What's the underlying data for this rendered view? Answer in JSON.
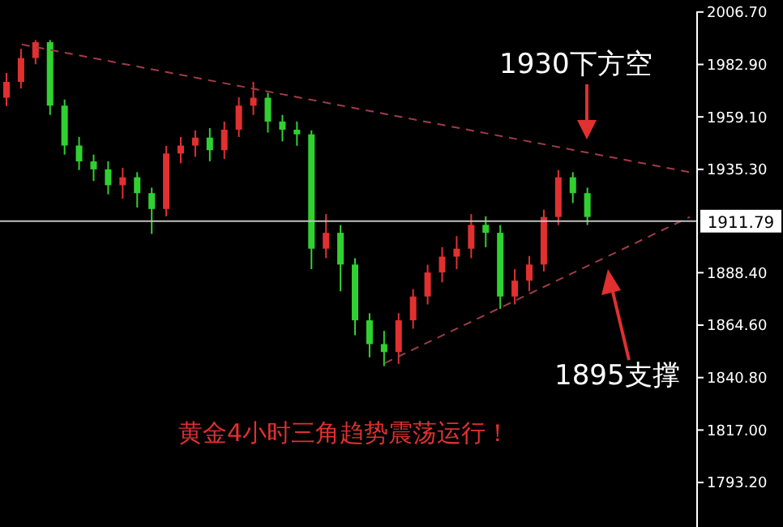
{
  "chart_data": {
    "type": "candlestick",
    "categories": [
      null,
      null,
      null,
      null,
      null,
      null,
      null,
      null,
      null,
      null,
      null,
      null,
      null,
      null,
      null,
      null,
      null,
      null,
      null,
      null,
      null,
      null,
      null,
      null,
      null,
      null,
      null,
      null,
      null,
      null,
      null,
      null,
      null,
      null,
      null,
      null,
      null,
      null,
      null,
      null,
      null,
      null,
      null,
      null,
      null,
      null,
      null,
      null
    ],
    "ohlc": [
      [
        1967.8,
        1979,
        1964,
        1975.0
      ],
      [
        1975.0,
        1990,
        1972,
        1985.8
      ],
      [
        1985.8,
        1994,
        1983,
        1993.0
      ],
      [
        1993.0,
        1994,
        1960,
        1964.2
      ],
      [
        1964.2,
        1967,
        1942,
        1946.1
      ],
      [
        1946.1,
        1950,
        1935,
        1938.9
      ],
      [
        1938.9,
        1942,
        1930,
        1935.3
      ],
      [
        1935.3,
        1939,
        1924,
        1928.1
      ],
      [
        1928.1,
        1936,
        1922,
        1931.7
      ],
      [
        1931.7,
        1934,
        1918,
        1924.5
      ],
      [
        1924.5,
        1927,
        1906,
        1917.3
      ],
      [
        1917.3,
        1946,
        1914,
        1942.5
      ],
      [
        1942.5,
        1950,
        1938,
        1946.1
      ],
      [
        1946.1,
        1953,
        1941,
        1949.7
      ],
      [
        1949.7,
        1954,
        1939,
        1944.0
      ],
      [
        1944.0,
        1957,
        1940,
        1953.3
      ],
      [
        1953.3,
        1968,
        1950,
        1964.2
      ],
      [
        1964.2,
        1975,
        1960,
        1967.8
      ],
      [
        1967.8,
        1970,
        1952,
        1957.0
      ],
      [
        1957.0,
        1960,
        1948,
        1953.3
      ],
      [
        1953.3,
        1957,
        1946,
        1951.2
      ],
      [
        1951.2,
        1953,
        1890,
        1899.3
      ],
      [
        1899.3,
        1915,
        1895,
        1906.5
      ],
      [
        1906.5,
        1910,
        1880,
        1892.1
      ],
      [
        1892.1,
        1895,
        1860,
        1866.8
      ],
      [
        1866.8,
        1870,
        1850,
        1856.0
      ],
      [
        1856.0,
        1862,
        1846,
        1852.4
      ],
      [
        1852.4,
        1870,
        1847,
        1866.8
      ],
      [
        1866.8,
        1881,
        1863,
        1877.6
      ],
      [
        1877.6,
        1892,
        1874,
        1888.5
      ],
      [
        1888.5,
        1900,
        1884,
        1895.7
      ],
      [
        1895.7,
        1905,
        1890,
        1899.3
      ],
      [
        1899.3,
        1915,
        1895,
        1910.1
      ],
      [
        1910.1,
        1914,
        1900,
        1906.5
      ],
      [
        1906.5,
        1910,
        1872,
        1877.6
      ],
      [
        1877.6,
        1890,
        1874,
        1884.8
      ],
      [
        1884.8,
        1896,
        1880,
        1892.1
      ],
      [
        1892.1,
        1917,
        1889,
        1913.7
      ],
      [
        1913.7,
        1935,
        1910,
        1931.7
      ],
      [
        1931.7,
        1934,
        1920,
        1924.5
      ],
      [
        1924.5,
        1927,
        1910,
        1913.7
      ],
      null,
      null,
      null,
      null,
      null,
      null,
      null
    ],
    "colors": [
      "#e03030",
      "#e03030",
      "#e03030",
      "#30d030",
      "#30d030",
      "#30d030",
      "#30d030",
      "#30d030",
      "#e03030",
      "#30d030",
      "#30d030",
      "#e03030",
      "#e03030",
      "#e03030",
      "#30d030",
      "#e03030",
      "#e03030",
      "#e03030",
      "#30d030",
      "#30d030",
      "#30d030",
      "#30d030",
      "#e03030",
      "#30d030",
      "#30d030",
      "#30d030",
      "#30d030",
      "#e03030",
      "#e03030",
      "#e03030",
      "#e03030",
      "#e03030",
      "#e03030",
      "#30d030",
      "#30d030",
      "#e03030",
      "#e03030",
      "#e03030",
      "#e03030",
      "#30d030",
      "#30d030",
      null,
      null,
      null,
      null,
      null,
      null,
      null
    ],
    "series": [
      {
        "type": "line",
        "values": [
          null,
          1992,
          null,
          null,
          null,
          null,
          null,
          null,
          null,
          null,
          null,
          null,
          null,
          null,
          null,
          null,
          null,
          null,
          null,
          null,
          null,
          null,
          null,
          null,
          null,
          null,
          null,
          null,
          null,
          null,
          null,
          null,
          null,
          null,
          null,
          null,
          null,
          null,
          null,
          null,
          null,
          null,
          null,
          null,
          null,
          null,
          null,
          1934
        ],
        "color": "#a03c48",
        "line_style": "dashed"
      },
      {
        "type": "line",
        "values": [
          null,
          null,
          null,
          null,
          null,
          null,
          null,
          null,
          null,
          null,
          null,
          null,
          null,
          null,
          null,
          null,
          null,
          null,
          null,
          null,
          null,
          null,
          null,
          null,
          null,
          null,
          1847.4,
          null,
          null,
          null,
          null,
          null,
          null,
          null,
          null,
          null,
          null,
          null,
          null,
          null,
          null,
          null,
          null,
          null,
          null,
          null,
          null,
          1913.7
        ],
        "color": "#a03c48",
        "line_style": "dashed"
      }
    ],
    "ylim": [
      1773,
      2007
    ],
    "yticks": [
      {
        "value": 2006.7,
        "label": "2006.70"
      },
      {
        "value": 1982.9,
        "label": "1982.90"
      },
      {
        "value": 1959.1,
        "label": "1959.10"
      },
      {
        "value": 1935.3,
        "label": "1935.30"
      },
      {
        "value": 1888.4,
        "label": "1888.40"
      },
      {
        "value": 1864.6,
        "label": "1864.60"
      },
      {
        "value": 1840.8,
        "label": "1840.80"
      },
      {
        "value": 1817,
        "label": "1817.00"
      },
      {
        "value": 1793.2,
        "label": "1793.20"
      }
    ],
    "ref_lines": [
      {
        "axis": "y",
        "value": 1911.79,
        "label": "1911.79",
        "color": "#c0c0c0"
      }
    ],
    "tick_labels": "y",
    "annotations": [
      "1930下方空",
      "1895支撑",
      "黄金4小时三角趋势震荡运行！"
    ]
  }
}
